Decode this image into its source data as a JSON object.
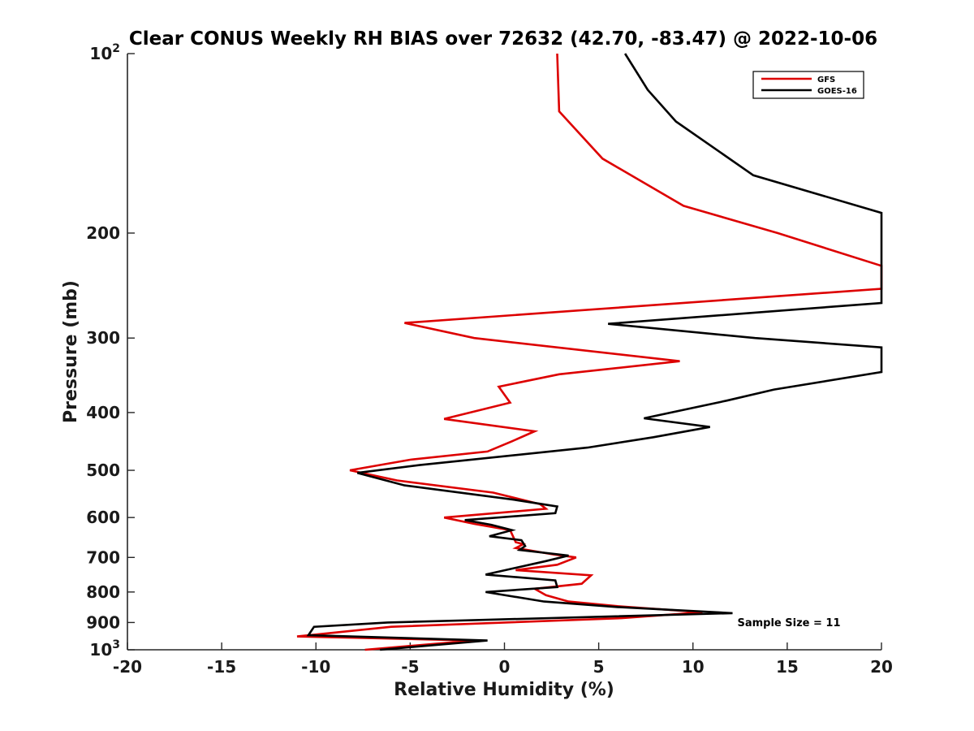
{
  "chart_data": {
    "type": "line",
    "title": "Clear CONUS Weekly RH BIAS over 72632 (42.70, -83.47) @ 2022-10-06",
    "xlabel": "Relative Humidity (%)",
    "ylabel": "Pressure (mb)",
    "xlim": [
      -20,
      20
    ],
    "ylim": [
      100,
      1000
    ],
    "y_scale": "log",
    "y_reversed": true,
    "grid": false,
    "legend_position": "top-right",
    "x_ticks": [
      {
        "value": -20,
        "label": "-20"
      },
      {
        "value": -15,
        "label": "-15"
      },
      {
        "value": -10,
        "label": "-10"
      },
      {
        "value": -5,
        "label": "-5"
      },
      {
        "value": 0,
        "label": "0"
      },
      {
        "value": 5,
        "label": "5"
      },
      {
        "value": 10,
        "label": "10"
      },
      {
        "value": 15,
        "label": "15"
      },
      {
        "value": 20,
        "label": "20"
      }
    ],
    "y_ticks": [
      {
        "value": 100,
        "base": "10",
        "exp": "2"
      },
      {
        "value": 200,
        "base": "200",
        "exp": ""
      },
      {
        "value": 300,
        "base": "300",
        "exp": ""
      },
      {
        "value": 400,
        "base": "400",
        "exp": ""
      },
      {
        "value": 500,
        "base": "500",
        "exp": ""
      },
      {
        "value": 600,
        "base": "600",
        "exp": ""
      },
      {
        "value": 700,
        "base": "700",
        "exp": ""
      },
      {
        "value": 800,
        "base": "800",
        "exp": ""
      },
      {
        "value": 900,
        "base": "900",
        "exp": ""
      },
      {
        "value": 1000,
        "base": "10",
        "exp": "3"
      }
    ],
    "annotation": "Sample Size = 11",
    "series": [
      {
        "name": "GFS",
        "color": "#dd0000",
        "points": [
          [
            2.8,
            100
          ],
          [
            2.9,
            125
          ],
          [
            5.2,
            150
          ],
          [
            9.5,
            180
          ],
          [
            14.5,
            200
          ],
          [
            20,
            227
          ],
          [
            20,
            248
          ],
          [
            -5.3,
            283
          ],
          [
            -1.6,
            300
          ],
          [
            9.3,
            328
          ],
          [
            2.9,
            345
          ],
          [
            -0.3,
            362
          ],
          [
            0.3,
            385
          ],
          [
            -3.2,
            410
          ],
          [
            1.6,
            430
          ],
          [
            0.4,
            447
          ],
          [
            -0.9,
            465
          ],
          [
            -5.0,
            480
          ],
          [
            -8.2,
            500
          ],
          [
            -5.7,
            520
          ],
          [
            -0.6,
            545
          ],
          [
            1.9,
            570
          ],
          [
            2.2,
            580
          ],
          [
            -3.2,
            600
          ],
          [
            -1.6,
            615
          ],
          [
            0.3,
            630
          ],
          [
            0.6,
            660
          ],
          [
            1.0,
            665
          ],
          [
            0.6,
            675
          ],
          [
            2.6,
            692
          ],
          [
            3.8,
            700
          ],
          [
            2.8,
            720
          ],
          [
            0.6,
            735
          ],
          [
            4.6,
            750
          ],
          [
            4.1,
            775
          ],
          [
            1.6,
            790
          ],
          [
            2.2,
            810
          ],
          [
            3.4,
            830
          ],
          [
            6.0,
            845
          ],
          [
            10.5,
            865
          ],
          [
            6.2,
            885
          ],
          [
            -6.0,
            915
          ],
          [
            -11.0,
            950
          ],
          [
            -1.6,
            965
          ],
          [
            -7.4,
            1000
          ]
        ]
      },
      {
        "name": "GOES-16",
        "color": "#000000",
        "points": [
          [
            6.4,
            100
          ],
          [
            7.6,
            115
          ],
          [
            9.1,
            130
          ],
          [
            13.2,
            160
          ],
          [
            20,
            185
          ],
          [
            20,
            262
          ],
          [
            5.5,
            284
          ],
          [
            13.3,
            300
          ],
          [
            20,
            311
          ],
          [
            20,
            342
          ],
          [
            14.3,
            366
          ],
          [
            11.8,
            382
          ],
          [
            7.4,
            409
          ],
          [
            10.9,
            423
          ],
          [
            7.9,
            440
          ],
          [
            4.4,
            458
          ],
          [
            -4.5,
            490
          ],
          [
            -7.8,
            505
          ],
          [
            -5.3,
            530
          ],
          [
            0.5,
            560
          ],
          [
            2.8,
            575
          ],
          [
            2.7,
            590
          ],
          [
            -2.1,
            606
          ],
          [
            -0.7,
            617
          ],
          [
            0.4,
            630
          ],
          [
            -0.8,
            645
          ],
          [
            0.9,
            655
          ],
          [
            1.1,
            670
          ],
          [
            0.8,
            680
          ],
          [
            3.4,
            695
          ],
          [
            2.2,
            710
          ],
          [
            -1.0,
            748
          ],
          [
            2.7,
            765
          ],
          [
            2.8,
            785
          ],
          [
            -1.0,
            800
          ],
          [
            2.1,
            830
          ],
          [
            6.0,
            848
          ],
          [
            12.1,
            868
          ],
          [
            -6.2,
            900
          ],
          [
            -10.1,
            915
          ],
          [
            -10.4,
            945
          ],
          [
            -0.9,
            965
          ],
          [
            -6.6,
            1000
          ]
        ]
      }
    ]
  }
}
